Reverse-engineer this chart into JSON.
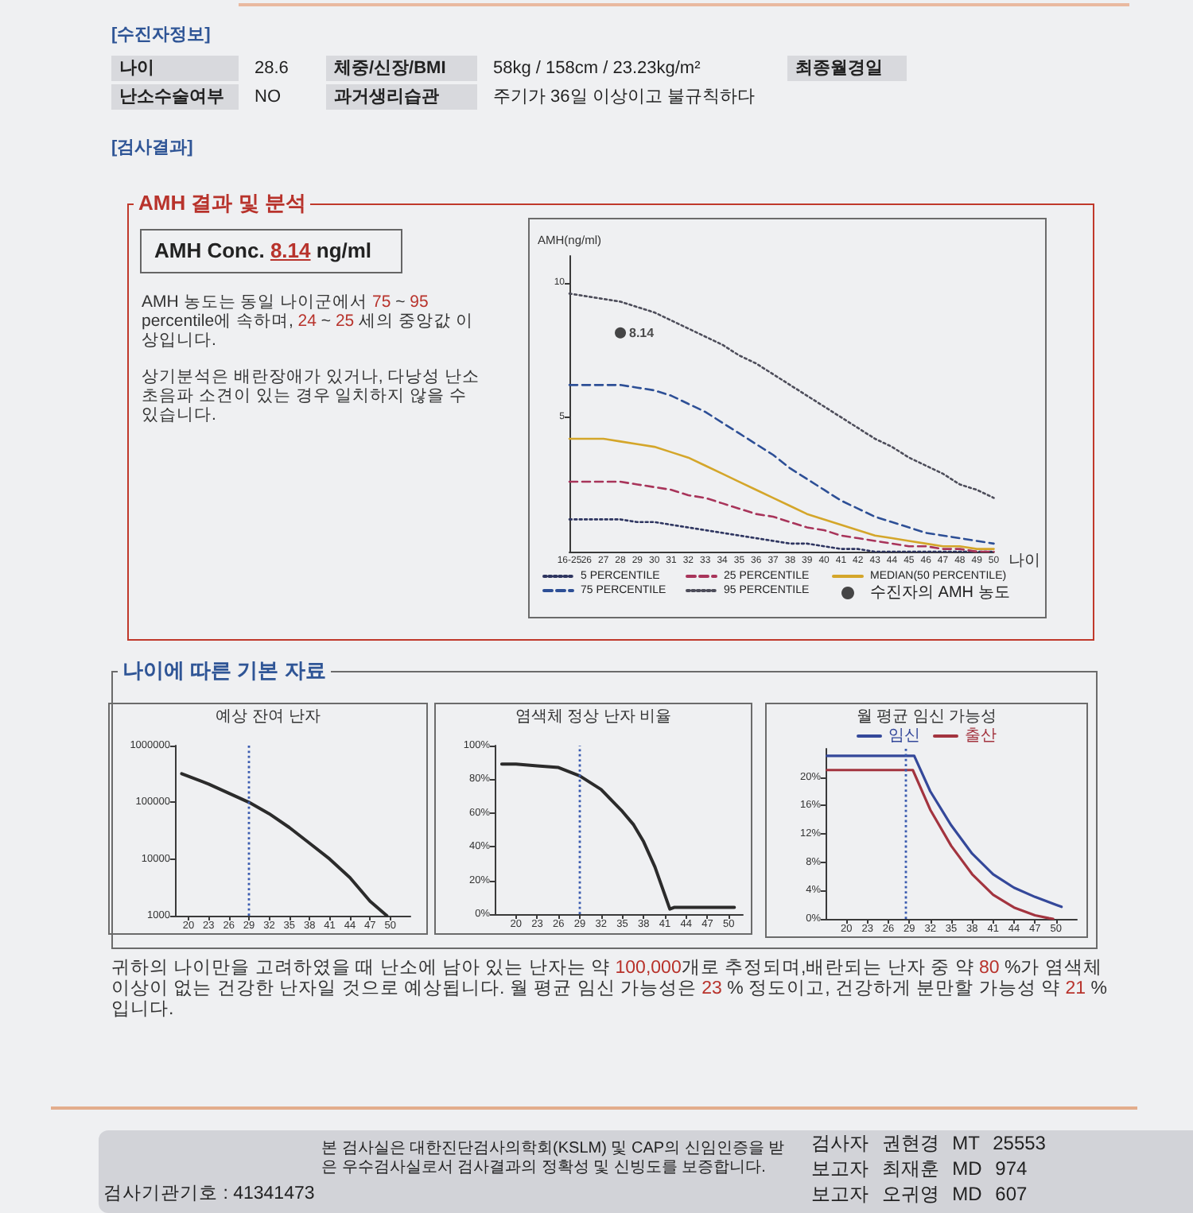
{
  "chart_data": [
    {
      "type": "other",
      "title": "[수진자정보]",
      "annotations": [
        "나이",
        "28.6",
        "체중/신장/BMI",
        "58kg / 158cm / 23.23kg/m²",
        "최종월경일",
        "난소수술여부",
        "NO",
        "과거생리습관",
        "주기가 36일 이상이고 불규칙하다"
      ]
    },
    {
      "type": "other",
      "title": "[검사결과]"
    },
    {
      "type": "other",
      "title": "AMH 결과 및 분석",
      "annotations": [
        "AMH Conc. 8.14 ng/ml",
        "AMH 농도는 동일 나이군에서 75 ~ 95 percentile에 속하며, 24 ~ 25 세의 중앙값 이상입니다.",
        "상기분석은 배란장애가 있거나, 다낭성 난소 초음파 소견이 있는 경우 일치하지 않을 수 있습니다."
      ]
    },
    {
      "type": "line",
      "xlabel": "나이",
      "ylabel": "AMH(ng/ml)",
      "categories": [
        "16-25",
        "26",
        "27",
        "28",
        "29",
        "30",
        "31",
        "32",
        "33",
        "34",
        "35",
        "36",
        "37",
        "38",
        "39",
        "40",
        "41",
        "42",
        "43",
        "44",
        "45",
        "46",
        "47",
        "48",
        "49",
        "50"
      ],
      "ylim": [
        0,
        11
      ],
      "yticks": [
        5,
        10
      ],
      "marker": "none",
      "legend": "bottom",
      "series": [
        {
          "name": "5 PERCENTILE",
          "color": "#2e3560",
          "line_style": "dotted",
          "values": [
            1.2,
            1.2,
            1.2,
            1.2,
            1.1,
            1.1,
            1.0,
            0.9,
            0.8,
            0.7,
            0.6,
            0.5,
            0.4,
            0.3,
            0.3,
            0.2,
            0.1,
            0.1,
            0.0,
            0.0,
            0.0,
            0.0,
            0.0,
            0.0,
            0.0,
            0.0
          ]
        },
        {
          "name": "25 PERCENTILE",
          "color": "#a8345a",
          "line_style": "dashed",
          "values": [
            2.6,
            2.6,
            2.6,
            2.6,
            2.5,
            2.4,
            2.3,
            2.1,
            2.0,
            1.8,
            1.6,
            1.4,
            1.3,
            1.1,
            0.9,
            0.8,
            0.6,
            0.5,
            0.4,
            0.3,
            0.2,
            0.2,
            0.1,
            0.1,
            0.0,
            0.0
          ]
        },
        {
          "name": "MEDIAN(50 PERCENTILE)",
          "color": "#d4a62a",
          "line_style": "solid",
          "values": [
            4.2,
            4.2,
            4.2,
            4.1,
            4.0,
            3.9,
            3.7,
            3.5,
            3.2,
            2.9,
            2.6,
            2.3,
            2.0,
            1.7,
            1.4,
            1.2,
            1.0,
            0.8,
            0.6,
            0.5,
            0.4,
            0.3,
            0.2,
            0.2,
            0.1,
            0.1
          ]
        },
        {
          "name": "75 PERCENTILE",
          "color": "#2d4f96",
          "line_style": "dashed",
          "values": [
            6.2,
            6.2,
            6.2,
            6.2,
            6.1,
            6.0,
            5.8,
            5.5,
            5.2,
            4.8,
            4.4,
            4.0,
            3.6,
            3.1,
            2.7,
            2.3,
            1.9,
            1.6,
            1.3,
            1.1,
            0.9,
            0.7,
            0.6,
            0.5,
            0.4,
            0.3
          ]
        },
        {
          "name": "95 PERCENTILE",
          "color": "#4d4d5a",
          "line_style": "dotted",
          "values": [
            9.6,
            9.5,
            9.4,
            9.3,
            9.1,
            8.9,
            8.6,
            8.3,
            8.0,
            7.7,
            7.3,
            7.0,
            6.6,
            6.2,
            5.8,
            5.4,
            5.0,
            4.6,
            4.2,
            3.9,
            3.5,
            3.2,
            2.9,
            2.5,
            2.3,
            2.0
          ]
        },
        {
          "name": "수진자의 AMH 농도",
          "type": "scatter",
          "marker": "circle",
          "color": "#1a1a1a",
          "x": [
            "28"
          ],
          "values": [
            8.14
          ],
          "value_labels": [
            "8.14"
          ]
        }
      ]
    },
    {
      "type": "other",
      "title": "나이에 따른 기본 자료"
    },
    {
      "type": "line",
      "title": "예상 잔여 난자",
      "log": "y",
      "x": [
        19,
        23,
        26,
        29,
        32,
        35,
        38,
        41,
        44,
        47,
        49.5
      ],
      "values": [
        320000,
        210000,
        145000,
        100000,
        63000,
        36000,
        19000,
        10000,
        4700,
        1800,
        1000
      ],
      "color": "#2b2b2b",
      "xlim": [
        18,
        53
      ],
      "xticks": [
        20,
        23,
        26,
        29,
        32,
        35,
        38,
        41,
        44,
        47,
        50
      ],
      "ylim": [
        1000,
        1000000
      ],
      "yticks": [
        1000,
        10000,
        100000,
        1000000
      ],
      "marker": "none",
      "ref_lines": [
        {
          "axis": "x",
          "value": 29,
          "color": "#3a5bb0",
          "line_style": "dotted"
        }
      ]
    },
    {
      "type": "line",
      "title": "염색체 정상 난자 비율",
      "x": [
        18,
        20,
        23,
        26,
        29,
        32,
        35,
        36.6,
        38,
        39.6,
        41.2,
        41.7,
        42.3,
        50.8
      ],
      "values": [
        89,
        89,
        88,
        87,
        82,
        74,
        61,
        53,
        43,
        28,
        9,
        3,
        4,
        4
      ],
      "color": "#2b2b2b",
      "xlim": [
        17,
        52
      ],
      "xticks": [
        20,
        23,
        26,
        29,
        32,
        35,
        38,
        41,
        44,
        47,
        50
      ],
      "ylim": [
        0,
        100
      ],
      "yticks": [
        {
          "value": 0,
          "label": "0%"
        },
        {
          "value": 20,
          "label": "20%"
        },
        {
          "value": 40,
          "label": "40%"
        },
        {
          "value": 60,
          "label": "60%"
        },
        {
          "value": 80,
          "label": "80%"
        },
        {
          "value": 100,
          "label": "100%"
        }
      ],
      "marker": "none",
      "ref_lines": [
        {
          "axis": "x",
          "value": 29,
          "color": "#3a5bb0",
          "line_style": "dotted"
        }
      ]
    },
    {
      "type": "line",
      "title": "월 평균 임신 가능성",
      "legend": "top",
      "marker": "none",
      "series": [
        {
          "name": "임신",
          "color": "#34489a",
          "x": [
            17.2,
            29.7,
            32,
            35,
            38,
            41,
            44,
            47,
            50,
            50.8
          ],
          "values": [
            23,
            23,
            18,
            13.2,
            9.2,
            6.3,
            4.4,
            3.1,
            2.0,
            1.7
          ]
        },
        {
          "name": "출산",
          "color": "#a3343f",
          "x": [
            17.2,
            29.5,
            32,
            35,
            38,
            41,
            44,
            47,
            49,
            49.6
          ],
          "values": [
            21,
            21,
            15.4,
            10.3,
            6.3,
            3.4,
            1.6,
            0.5,
            0.1,
            0
          ]
        }
      ],
      "xlim": [
        17,
        53
      ],
      "xticks": [
        20,
        23,
        26,
        29,
        32,
        35,
        38,
        41,
        44,
        47,
        50
      ],
      "ylim": [
        0,
        24
      ],
      "yticks": [
        {
          "value": 0,
          "label": "0%"
        },
        {
          "value": 4,
          "label": "4%"
        },
        {
          "value": 8,
          "label": "8%"
        },
        {
          "value": 12,
          "label": "12%"
        },
        {
          "value": 16,
          "label": "16%"
        },
        {
          "value": 20,
          "label": "20%"
        }
      ],
      "ref_lines": [
        {
          "axis": "x",
          "value": 28.5,
          "color": "#3a5bb0",
          "line_style": "dotted"
        }
      ]
    },
    {
      "type": "other",
      "annotations": [
        "귀하의 나이만을 고려하였을 때 난소에 남아 있는 난자는 약 100,000개로 추정되며,배란되는 난자 중 약 80 %가 염색체 이상이 없는 건강한 난자일 것으로 예상됩니다. 월 평균 임신 가능성은 23 % 정도이고, 건강하게 분만할 가능성 약 21 % 입니다."
      ]
    },
    {
      "type": "other",
      "annotations": [
        "검사기관기호 : 41341473",
        "본 검사실은 대한진단검사의학회(KSLM) 및 CAP의 신임인증을 받은 우수검사실로서 검사결과의 정확성 및 신빙도를 보증합니다.",
        "검사자 권현경 MT 25553",
        "보고자 최재훈 MD 974",
        "보고자 오귀영 MD 607"
      ]
    }
  ]
}
